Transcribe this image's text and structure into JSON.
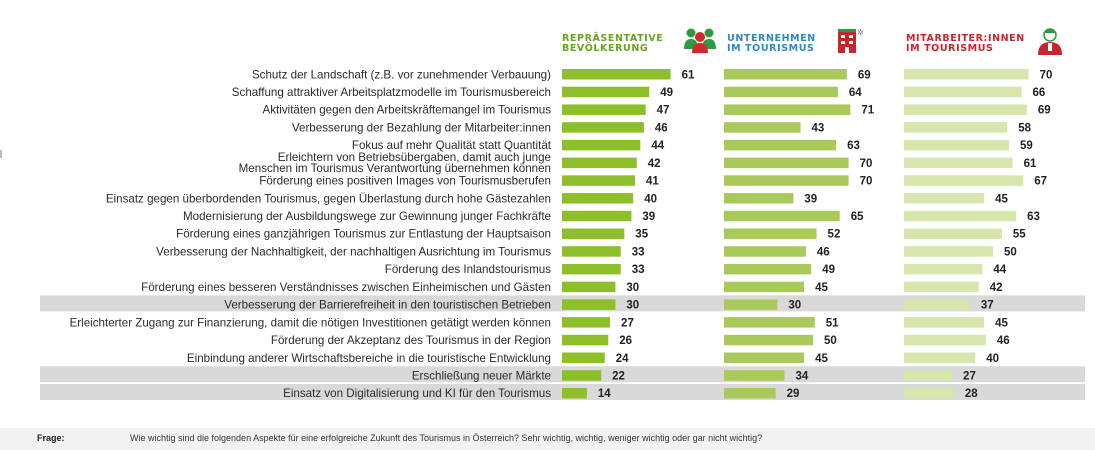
{
  "chart_data": {
    "type": "bar",
    "orientation": "horizontal",
    "xlim": [
      0,
      100
    ],
    "columns": [
      {
        "key": "bev",
        "line1": "REPRÄSENTATIVE",
        "line2": "BEVÖLKERUNG",
        "color": "#8cbf2a",
        "header_color": "#6aa31c",
        "icon": "people-group-icon"
      },
      {
        "key": "unt",
        "line1": "UNTERNEHMEN",
        "line2": "IM TOURISMUS",
        "color": "#a9c95a",
        "header_color": "#2a8ac4",
        "icon": "hotel-building-icon"
      },
      {
        "key": "mit",
        "line1": "MITARBEITER:INNEN",
        "line2": "IM TOURISMUS",
        "color": "#d6e6ad",
        "header_color": "#c8262e",
        "icon": "staff-person-icon"
      }
    ],
    "rows": [
      {
        "label": [
          "Schutz der Landschaft (z.B. vor zunehmender Verbauung)"
        ],
        "values": [
          61,
          69,
          70
        ],
        "highlight": false
      },
      {
        "label": [
          "Schaffung attraktiver Arbeitsplatzmodelle im Tourismusbereich"
        ],
        "values": [
          49,
          64,
          66
        ],
        "highlight": false
      },
      {
        "label": [
          "Aktivitäten gegen den Arbeitskräftemangel im Tourismus"
        ],
        "values": [
          47,
          71,
          69
        ],
        "highlight": false
      },
      {
        "label": [
          "Verbesserung der Bezahlung der Mitarbeiter:innen"
        ],
        "values": [
          46,
          43,
          58
        ],
        "highlight": false
      },
      {
        "label": [
          "Fokus auf mehr Qualität statt Quantität"
        ],
        "values": [
          44,
          63,
          59
        ],
        "highlight": false
      },
      {
        "label": [
          "Erleichtern von Betriebsübergaben, damit auch junge",
          "Menschen im Tourismus Verantwortung übernehmen können"
        ],
        "values": [
          42,
          70,
          61
        ],
        "highlight": false
      },
      {
        "label": [
          "Förderung eines positiven Images von Tourismusberufen"
        ],
        "values": [
          41,
          70,
          67
        ],
        "highlight": false
      },
      {
        "label": [
          "Einsatz gegen überbordenden Tourismus, gegen Überlastung durch hohe Gästezahlen"
        ],
        "values": [
          40,
          39,
          45
        ],
        "highlight": false
      },
      {
        "label": [
          "Modernisierung der Ausbildungswege zur Gewinnung junger Fachkräfte"
        ],
        "values": [
          39,
          65,
          63
        ],
        "highlight": false
      },
      {
        "label": [
          "Förderung eines ganzjährigen Tourismus zur Entlastung der Hauptsaison"
        ],
        "values": [
          35,
          52,
          55
        ],
        "highlight": false
      },
      {
        "label": [
          "Verbesserung der Nachhaltigkeit, der nachhaltigen Ausrichtung im Tourismus"
        ],
        "values": [
          33,
          46,
          50
        ],
        "highlight": false
      },
      {
        "label": [
          "Förderung des Inlandstourismus"
        ],
        "values": [
          33,
          49,
          44
        ],
        "highlight": false
      },
      {
        "label": [
          "Förderung eines besseren Verständnisses zwischen Einheimischen und Gästen"
        ],
        "values": [
          30,
          45,
          42
        ],
        "highlight": false
      },
      {
        "label": [
          "Verbesserung der Barrierefreiheit in den touristischen Betrieben"
        ],
        "values": [
          30,
          30,
          37
        ],
        "highlight": true
      },
      {
        "label": [
          "Erleichterter Zugang zur Finanzierung, damit die nötigen Investitionen getätigt werden können"
        ],
        "values": [
          27,
          51,
          45
        ],
        "highlight": false
      },
      {
        "label": [
          "Förderung der Akzeptanz des Tourismus in der Region"
        ],
        "values": [
          26,
          50,
          46
        ],
        "highlight": false
      },
      {
        "label": [
          "Einbindung anderer Wirtschaftsbereiche in die touristische Entwicklung"
        ],
        "values": [
          24,
          45,
          40
        ],
        "highlight": false
      },
      {
        "label": [
          "Erschließung neuer Märkte"
        ],
        "values": [
          22,
          34,
          27
        ],
        "highlight": true
      },
      {
        "label": [
          "Einsatz von Digitalisierung und KI für den Tourismus"
        ],
        "values": [
          14,
          29,
          28
        ],
        "highlight": true
      }
    ]
  },
  "footer": {
    "question_label": "Frage:",
    "question_text": "Wie wichtig sind die folgenden Aspekte für eine erfolgreiche Zukunft des Tourismus in Österreich? Sehr wichtig, wichtig, weniger wichtig oder gar nicht wichtig?"
  }
}
